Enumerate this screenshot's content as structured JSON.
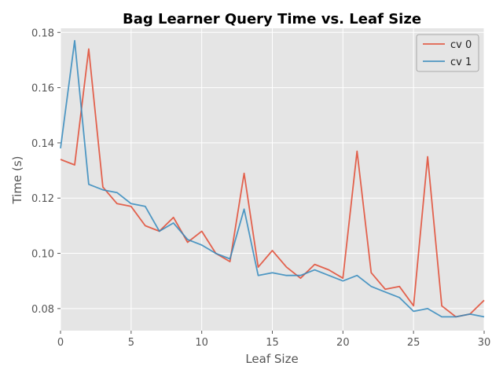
{
  "chart_data": {
    "type": "line",
    "title": "Bag Learner Query Time vs. Leaf Size",
    "xlabel": "Leaf Size",
    "ylabel": "Time (s)",
    "xlim": [
      0,
      30
    ],
    "ylim": [
      0.072,
      0.1815
    ],
    "xticks": [
      0,
      5,
      10,
      15,
      20,
      25,
      30
    ],
    "xtick_labels": [
      "0",
      "5",
      "10",
      "15",
      "20",
      "25",
      "30"
    ],
    "yticks": [
      0.08,
      0.1,
      0.12,
      0.14,
      0.16,
      0.18
    ],
    "ytick_labels": [
      "0.08",
      "0.10",
      "0.12",
      "0.14",
      "0.16",
      "0.18"
    ],
    "grid": true,
    "legend_position": "top-right",
    "x": [
      0,
      1,
      2,
      3,
      4,
      5,
      6,
      7,
      8,
      9,
      10,
      11,
      12,
      13,
      14,
      15,
      16,
      17,
      18,
      19,
      20,
      21,
      22,
      23,
      24,
      25,
      26,
      27,
      28,
      29,
      30
    ],
    "series": [
      {
        "name": "cv 0",
        "color": "#e24a33",
        "values": [
          0.134,
          0.132,
          0.174,
          0.124,
          0.118,
          0.117,
          0.11,
          0.108,
          0.113,
          0.104,
          0.108,
          0.1,
          0.097,
          0.129,
          0.095,
          0.101,
          0.095,
          0.091,
          0.096,
          0.094,
          0.091,
          0.137,
          0.093,
          0.087,
          0.088,
          0.081,
          0.135,
          0.081,
          0.077,
          0.078,
          0.083
        ]
      },
      {
        "name": "cv 1",
        "color": "#348abd",
        "values": [
          0.138,
          0.177,
          0.125,
          0.123,
          0.122,
          0.118,
          0.117,
          0.108,
          0.111,
          0.105,
          0.103,
          0.1,
          0.098,
          0.116,
          0.092,
          0.093,
          0.092,
          0.092,
          0.094,
          0.092,
          0.09,
          0.092,
          0.088,
          0.086,
          0.084,
          0.079,
          0.08,
          0.077,
          0.077,
          0.078,
          0.077
        ]
      }
    ],
    "colors": {
      "plot_background": "#e5e5e5",
      "grid": "#ffffff"
    }
  }
}
